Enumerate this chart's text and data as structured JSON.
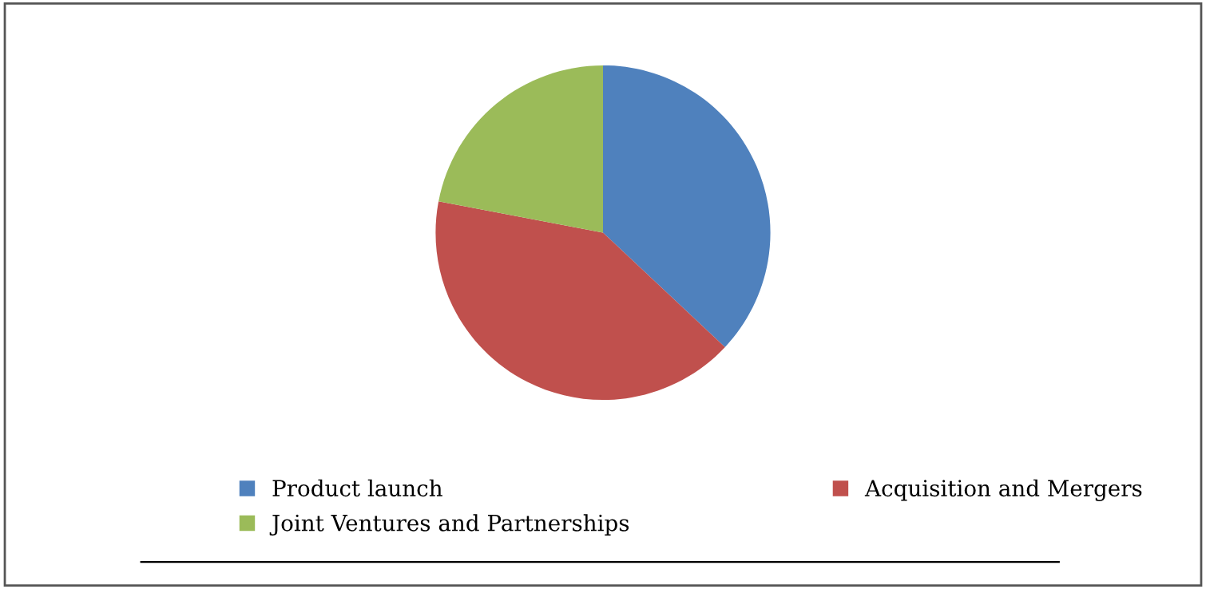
{
  "chart_data": {
    "type": "pie",
    "categories": [
      "Product launch",
      "Acquisition and Mergers",
      "Joint Ventures and Partnerships"
    ],
    "values": [
      37,
      41,
      22
    ],
    "colors": [
      "#4f81bd",
      "#c0504d",
      "#9bbb59"
    ],
    "legend": "bottom"
  }
}
